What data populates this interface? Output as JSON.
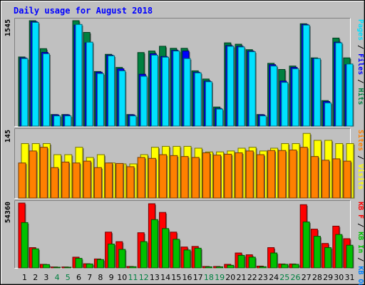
{
  "chart_data": {
    "type": "bar",
    "title": "Daily usage for August 2018",
    "categories": [
      "1",
      "2",
      "3",
      "4",
      "5",
      "6",
      "7",
      "8",
      "9",
      "10",
      "11",
      "12",
      "13",
      "14",
      "15",
      "16",
      "17",
      "18",
      "19",
      "20",
      "21",
      "22",
      "23",
      "24",
      "25",
      "26",
      "27",
      "28",
      "29",
      "30",
      "31"
    ],
    "weekend_days": [
      "4",
      "5",
      "11",
      "12",
      "18",
      "19",
      "25",
      "26"
    ],
    "panels": [
      {
        "id": "hits_files_pages",
        "scale_label": "1545",
        "ymax": 1545,
        "legend": [
          "Pages",
          "Files",
          "Hits"
        ],
        "legend_separator": "/",
        "series": [
          {
            "name": "Hits",
            "color": "#008040",
            "values": [
              1013,
              1545,
              1135,
              170,
              170,
              1545,
              1373,
              800,
              1052,
              860,
              170,
              1078,
              1100,
              1170,
              1140,
              1140,
              810,
              690,
              280,
              1220,
              1200,
              1120,
              170,
              920,
              830,
              880,
              1500,
              1000,
              374,
              1290,
              1000
            ]
          },
          {
            "name": "Files",
            "color": "#0000ff",
            "values": [
              1000,
              1530,
              1080,
              165,
              165,
              1480,
              1220,
              790,
              1040,
              840,
              165,
              760,
              1060,
              1020,
              1110,
              1100,
              790,
              660,
              260,
              1180,
              1170,
              1100,
              165,
              900,
              660,
              860,
              1490,
              990,
              360,
              1230,
              900
            ]
          },
          {
            "name": "Pages",
            "color": "#00e0ff",
            "values": [
              990,
              1520,
              1060,
              150,
              150,
              1490,
              1230,
              770,
              1030,
              810,
              150,
              730,
              1040,
              1010,
              1100,
              990,
              780,
              650,
              250,
              1170,
              1160,
              1090,
              150,
              880,
              640,
              840,
              1480,
              990,
              340,
              1220,
              910
            ]
          }
        ]
      },
      {
        "id": "visits_sites",
        "scale_label": "145",
        "ymax": 145,
        "legend": [
          "Sites",
          "Visits"
        ],
        "legend_separator": "/",
        "series": [
          {
            "name": "Visits",
            "color": "#ffff00",
            "values": [
              118,
              118,
              118,
              94,
              94,
              110,
              88,
              94,
              76,
              74,
              74,
              94,
              110,
              112,
              112,
              112,
              108,
              100,
              100,
              102,
              108,
              110,
              102,
              108,
              118,
              118,
              140,
              125,
              125,
              118,
              118
            ]
          },
          {
            "name": "Sites",
            "color": "#ff8000",
            "values": [
              76,
              102,
              110,
              66,
              78,
              76,
              80,
              66,
              76,
              75,
              68,
              88,
              86,
              94,
              92,
              90,
              88,
              98,
              93,
              95,
              98,
              102,
              94,
              103,
              103,
              104,
              110,
              90,
              82,
              85,
              80
            ]
          }
        ]
      },
      {
        "id": "kbytes",
        "scale_label": "54360",
        "ymax": 54360,
        "legend": [
          "KB F",
          "KB In",
          "KB Out"
        ],
        "legend_separator": "/",
        "series": [
          {
            "name": "KB F",
            "color": "#ff0000",
            "values": [
              54360,
              17000,
              3000,
              800,
              800,
              9000,
              3500,
              7500,
              30000,
              22000,
              1200,
              29500,
              53800,
              46500,
              30000,
              17500,
              18000,
              1200,
              1200,
              3000,
              12500,
              11000,
              1500,
              17000,
              3300,
              3300,
              53000,
              32500,
              20500,
              35000,
              24500
            ]
          },
          {
            "name": "KB In",
            "color": "#00c000",
            "values": [
              38000,
              16000,
              2800,
              500,
              500,
              8000,
              3300,
              7000,
              20000,
              15500,
              1000,
              22000,
              40500,
              33000,
              24000,
              15000,
              16500,
              900,
              900,
              2200,
              10500,
              9000,
              1000,
              12500,
              3000,
              3000,
              38500,
              26500,
              17000,
              28000,
              19000
            ]
          },
          {
            "name": "KB Out",
            "color": "#0080ff",
            "values": [
              0,
              0,
              0,
              0,
              0,
              0,
              0,
              0,
              0,
              0,
              0,
              0,
              0,
              0,
              0,
              0,
              0,
              0,
              0,
              0,
              0,
              0,
              0,
              0,
              0,
              0,
              0,
              0,
              0,
              0,
              0
            ]
          }
        ]
      }
    ],
    "colors": {
      "background": "#c0c0c0",
      "title": "#0000ff",
      "weekday_label": "#000000",
      "weekend_label": "#008040",
      "frame_light": "#ffffff",
      "frame_dark": "#808080"
    }
  }
}
